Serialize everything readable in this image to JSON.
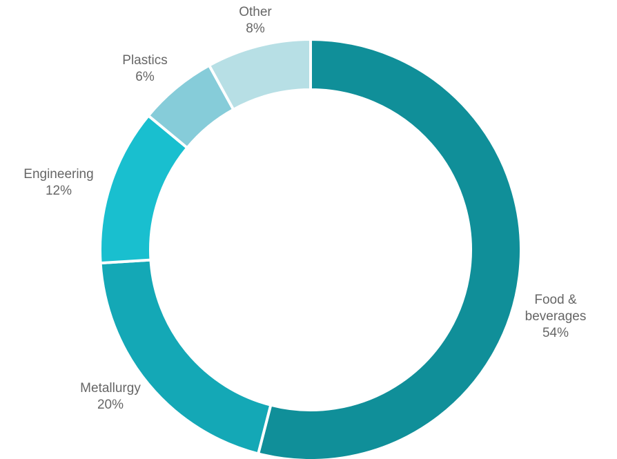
{
  "chart_data": {
    "type": "pie",
    "donut": true,
    "title": "",
    "legend": "none",
    "start": "top, clockwise",
    "slices": [
      {
        "label_lines": [
          "Food &",
          "beverages"
        ],
        "value_label": "54%",
        "value": 54,
        "color": "#108f99"
      },
      {
        "label_lines": [
          "Metallurgy"
        ],
        "value_label": "20%",
        "value": 20,
        "color": "#14a8b6"
      },
      {
        "label_lines": [
          "Engineering"
        ],
        "value_label": "12%",
        "value": 12,
        "color": "#19bfcf"
      },
      {
        "label_lines": [
          "Plastics"
        ],
        "value_label": "6%",
        "value": 6,
        "color": "#86ccd9"
      },
      {
        "label_lines": [
          "Other"
        ],
        "value_label": "8%",
        "value": 8,
        "color": "#b7dfe5"
      }
    ]
  }
}
